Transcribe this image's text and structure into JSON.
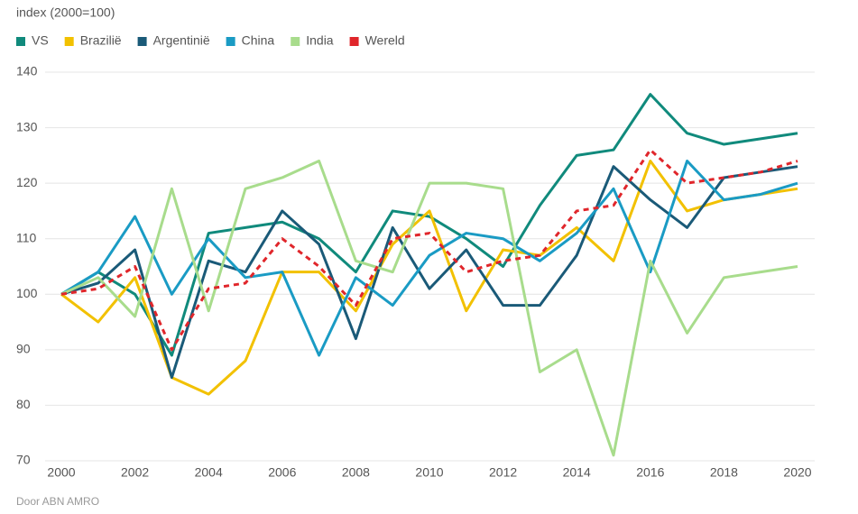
{
  "chart_data": {
    "type": "line",
    "subtitle": "index (2000=100)",
    "source": "Door ABN AMRO",
    "x": [
      2000,
      2001,
      2002,
      2003,
      2004,
      2005,
      2006,
      2007,
      2008,
      2009,
      2010,
      2011,
      2012,
      2013,
      2014,
      2015,
      2016,
      2017,
      2018,
      2019,
      2020
    ],
    "xlim": [
      2000,
      2020
    ],
    "xticks": [
      2000,
      2002,
      2004,
      2006,
      2008,
      2010,
      2012,
      2014,
      2016,
      2018,
      2020
    ],
    "ylim": [
      70,
      140
    ],
    "yticks": [
      70,
      80,
      90,
      100,
      110,
      120,
      130,
      140
    ],
    "grid": true,
    "legend": "top-left",
    "series": [
      {
        "name": "VS",
        "color": "#108a7c",
        "values": [
          100,
          104,
          100,
          89,
          111,
          112,
          113,
          110,
          104,
          115,
          114,
          110,
          105,
          116,
          125,
          126,
          136,
          129,
          127,
          128,
          129
        ]
      },
      {
        "name": "Brazilië",
        "color": "#f2c100",
        "values": [
          100,
          95,
          103,
          85,
          82,
          88,
          104,
          104,
          97,
          109,
          115,
          97,
          108,
          107,
          112,
          106,
          124,
          115,
          117,
          118,
          119
        ]
      },
      {
        "name": "Argentinië",
        "color": "#1a5a78",
        "values": [
          100,
          102,
          108,
          85,
          106,
          104,
          115,
          109,
          92,
          112,
          101,
          108,
          98,
          98,
          107,
          123,
          117,
          112,
          121,
          122,
          123
        ]
      },
      {
        "name": "China",
        "color": "#1a9bc4",
        "values": [
          100,
          104,
          114,
          100,
          110,
          103,
          104,
          89,
          103,
          98,
          107,
          111,
          110,
          106,
          111,
          119,
          104,
          124,
          117,
          118,
          120
        ]
      },
      {
        "name": "India",
        "color": "#a8dc8c",
        "values": [
          100,
          103,
          96,
          119,
          97,
          119,
          121,
          124,
          106,
          104,
          120,
          120,
          119,
          86,
          90,
          71,
          106,
          93,
          103,
          104,
          105
        ]
      },
      {
        "name": "Wereld",
        "color": "#e0262b",
        "dashed": true,
        "values": [
          100,
          101,
          105,
          90,
          101,
          102,
          110,
          105,
          98,
          110,
          111,
          104,
          106,
          107,
          115,
          116,
          126,
          120,
          121,
          122,
          124
        ]
      }
    ]
  }
}
